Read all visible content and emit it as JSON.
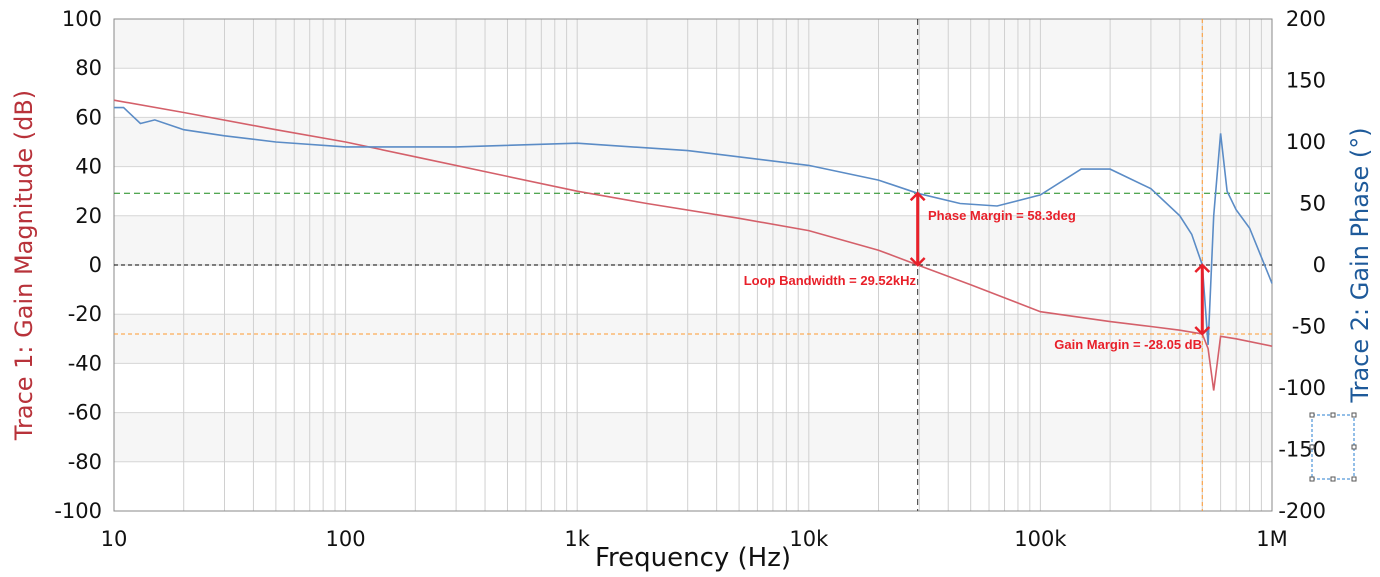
{
  "chart_data": {
    "type": "line",
    "xlabel": "Frequency (Hz)",
    "ylabel_left": "Trace 1: Gain Magnitude (dB)",
    "ylabel_right": "Trace 2: Gain Phase (°)",
    "x_scale": "log",
    "xlim": [
      10,
      1000000
    ],
    "ylim_left": [
      -100,
      100
    ],
    "ylim_right": [
      -200,
      200
    ],
    "x_ticks": [
      {
        "v": 10,
        "label": "10"
      },
      {
        "v": 100,
        "label": "100"
      },
      {
        "v": 1000,
        "label": "1k"
      },
      {
        "v": 10000,
        "label": "10k"
      },
      {
        "v": 100000,
        "label": "100k"
      },
      {
        "v": 1000000,
        "label": "1M"
      }
    ],
    "y_ticks_left": [
      "100",
      "80",
      "60",
      "40",
      "20",
      "0",
      "-20",
      "-40",
      "-60",
      "-80",
      "-100"
    ],
    "y_ticks_right": [
      "200",
      "150",
      "100",
      "50",
      "0",
      "-50",
      "-100",
      "-150",
      "-200"
    ],
    "grid": true,
    "series": [
      {
        "name": "Trace 1",
        "axis": "left",
        "color": "#d4606a",
        "x": [
          10,
          20,
          50,
          100,
          200,
          500,
          1000,
          2000,
          5000,
          10000,
          20000,
          29520,
          50000,
          100000,
          200000,
          300000,
          400000,
          500000,
          530000,
          560000,
          580000,
          600000,
          700000,
          1000000
        ],
        "y": [
          67,
          62,
          55,
          50,
          44,
          36,
          30,
          25,
          19,
          14,
          6,
          0,
          -8,
          -19,
          -23,
          -25,
          -26.5,
          -28.05,
          -34,
          -51,
          -40,
          -29,
          -30,
          -33
        ]
      },
      {
        "name": "Trace 2",
        "axis": "right",
        "color": "#5b8cc6",
        "x": [
          10,
          11,
          13,
          15,
          20,
          30,
          50,
          100,
          300,
          1000,
          3000,
          10000,
          20000,
          29520,
          45000,
          65000,
          100000,
          150000,
          200000,
          300000,
          400000,
          450000,
          500000,
          530000,
          560000,
          600000,
          640000,
          700000,
          800000,
          1000000
        ],
        "y": [
          128,
          128,
          115,
          118,
          110,
          105,
          100,
          96,
          96,
          99,
          93,
          81,
          69,
          58.3,
          50,
          48,
          57,
          78,
          78,
          62,
          40,
          25,
          0,
          -65,
          40,
          107,
          60,
          45,
          30,
          -15
        ]
      }
    ],
    "markers": {
      "loop_bandwidth_hz": 29520,
      "phase_margin_deg": 58.3,
      "gain_margin_freq_hz": 500000,
      "gain_margin_db": -28.05,
      "phase_margin_label": "Phase Margin = 58.3deg",
      "loop_bandwidth_label": "Loop Bandwidth = 29.52kHz",
      "gain_margin_label": "Gain Margin = -28.05 dB"
    },
    "colors": {
      "magnitude": "#c0393f",
      "phase": "#1e5a9a",
      "annotation": "#e8202a",
      "phase_ref": "#1a8a1a",
      "gain_ref": "#ff9a30"
    }
  }
}
